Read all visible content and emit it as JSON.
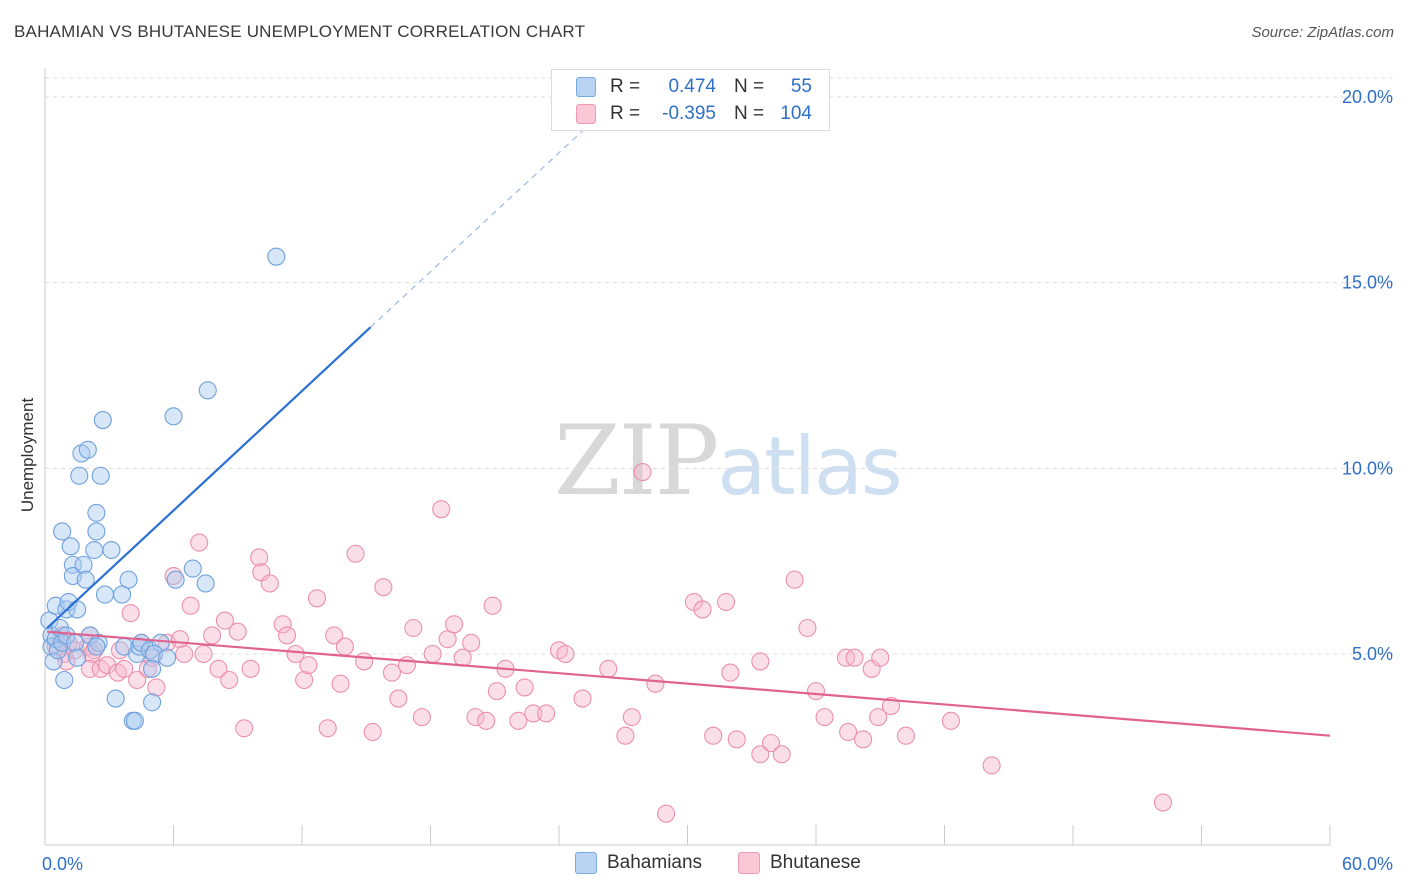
{
  "header": {
    "title": "BAHAMIAN VS BHUTANESE UNEMPLOYMENT CORRELATION CHART",
    "source": "Source: ZipAtlas.com"
  },
  "watermark": {
    "zip": "ZIP",
    "atlas": "atlas"
  },
  "legend": {
    "rows": [
      {
        "r_label": "R =",
        "r_value": "0.474",
        "n_label": "N =",
        "n_value": "55"
      },
      {
        "r_label": "R =",
        "r_value": "-0.395",
        "n_label": "N =",
        "n_value": "104"
      }
    ]
  },
  "bottom_legend": [
    "Bahamians",
    "Bhutanese"
  ],
  "colors": {
    "bahamian_fill": "#a9c9f0",
    "bahamian_stroke": "#6fa1de",
    "bahamian_line": "#2a6fd4",
    "bhutanese_fill": "#f6b8cb",
    "bhutanese_stroke": "#ec8fae",
    "bhutanese_line": "#e0628f",
    "axis_tick_label": "#2f6fc8",
    "grid": "#dddddd"
  },
  "chart_data": {
    "type": "scatter",
    "title": "BAHAMIAN VS BHUTANESE UNEMPLOYMENT CORRELATION CHART",
    "xlabel": "",
    "ylabel": "Unemployment",
    "xlim": [
      0,
      60
    ],
    "ylim": [
      0,
      20.5
    ],
    "x_tick_labels": [
      "0.0%",
      "60.0%"
    ],
    "y_ticks": [
      5,
      10,
      15,
      20
    ],
    "y_tick_labels": [
      "5.0%",
      "10.0%",
      "15.0%",
      "20.0%"
    ],
    "grid": "horizontal dashed",
    "legend_position": "top-center",
    "series": [
      {
        "name": "Bahamians",
        "r": 0.474,
        "n": 55,
        "trend": {
          "x": [
            0.1,
            15.2
          ],
          "y": [
            5.7,
            13.8
          ],
          "extended_x": [
            15.2,
            25.5
          ],
          "extended_y": [
            13.8,
            19.3
          ]
        },
        "points": [
          [
            0.2,
            5.9
          ],
          [
            0.3,
            5.5
          ],
          [
            0.3,
            5.2
          ],
          [
            0.4,
            4.8
          ],
          [
            0.5,
            6.3
          ],
          [
            0.5,
            5.4
          ],
          [
            0.6,
            5.1
          ],
          [
            0.7,
            5.7
          ],
          [
            0.8,
            5.3
          ],
          [
            0.9,
            4.3
          ],
          [
            0.8,
            8.3
          ],
          [
            1.0,
            6.2
          ],
          [
            1.1,
            6.4
          ],
          [
            1.0,
            5.5
          ],
          [
            1.2,
            7.9
          ],
          [
            1.3,
            7.4
          ],
          [
            1.3,
            7.1
          ],
          [
            1.4,
            5.3
          ],
          [
            1.5,
            6.2
          ],
          [
            1.5,
            4.9
          ],
          [
            1.6,
            9.8
          ],
          [
            1.7,
            10.4
          ],
          [
            1.8,
            7.4
          ],
          [
            1.9,
            7.0
          ],
          [
            2.0,
            10.5
          ],
          [
            2.1,
            5.5
          ],
          [
            2.3,
            7.8
          ],
          [
            2.4,
            8.8
          ],
          [
            2.4,
            8.3
          ],
          [
            2.5,
            5.3
          ],
          [
            2.4,
            5.2
          ],
          [
            2.6,
            9.8
          ],
          [
            2.7,
            11.3
          ],
          [
            2.8,
            6.6
          ],
          [
            3.1,
            7.8
          ],
          [
            3.3,
            3.8
          ],
          [
            3.6,
            6.6
          ],
          [
            3.7,
            5.2
          ],
          [
            3.9,
            7.0
          ],
          [
            4.1,
            3.2
          ],
          [
            4.2,
            3.2
          ],
          [
            4.3,
            5.0
          ],
          [
            4.4,
            5.2
          ],
          [
            4.5,
            5.3
          ],
          [
            4.9,
            5.1
          ],
          [
            5.0,
            3.7
          ],
          [
            5.4,
            5.3
          ],
          [
            5.1,
            5.0
          ],
          [
            5.7,
            4.9
          ],
          [
            6.0,
            11.4
          ],
          [
            5.0,
            4.6
          ],
          [
            6.1,
            7.0
          ],
          [
            6.9,
            7.3
          ],
          [
            7.5,
            6.9
          ],
          [
            7.6,
            12.1
          ],
          [
            10.8,
            15.7
          ]
        ]
      },
      {
        "name": "Bhutanese",
        "r": -0.395,
        "n": 104,
        "trend": {
          "x": [
            0.1,
            60
          ],
          "y": [
            5.6,
            2.8
          ]
        },
        "points": [
          [
            0.5,
            5.2
          ],
          [
            0.8,
            5.5
          ],
          [
            0.9,
            5.0
          ],
          [
            1.0,
            4.8
          ],
          [
            1.1,
            5.3
          ],
          [
            1.4,
            5.1
          ],
          [
            2.0,
            5.2
          ],
          [
            2.1,
            5.5
          ],
          [
            2.3,
            5.1
          ],
          [
            2.2,
            5.0
          ],
          [
            2.1,
            4.6
          ],
          [
            2.6,
            4.6
          ],
          [
            2.9,
            4.7
          ],
          [
            3.4,
            4.5
          ],
          [
            3.5,
            5.1
          ],
          [
            3.7,
            4.6
          ],
          [
            4.0,
            6.1
          ],
          [
            4.3,
            4.3
          ],
          [
            4.5,
            5.3
          ],
          [
            4.8,
            4.6
          ],
          [
            5.0,
            4.9
          ],
          [
            5.2,
            4.1
          ],
          [
            5.7,
            5.3
          ],
          [
            6.0,
            7.1
          ],
          [
            6.3,
            5.4
          ],
          [
            6.5,
            5.0
          ],
          [
            6.8,
            6.3
          ],
          [
            7.2,
            8.0
          ],
          [
            7.4,
            5.0
          ],
          [
            7.8,
            5.5
          ],
          [
            8.1,
            4.6
          ],
          [
            8.6,
            4.3
          ],
          [
            8.4,
            5.9
          ],
          [
            9.0,
            5.6
          ],
          [
            9.3,
            3.0
          ],
          [
            9.6,
            4.6
          ],
          [
            10.0,
            7.6
          ],
          [
            10.1,
            7.2
          ],
          [
            10.5,
            6.9
          ],
          [
            11.1,
            5.8
          ],
          [
            11.3,
            5.5
          ],
          [
            11.7,
            5.0
          ],
          [
            12.1,
            4.3
          ],
          [
            12.3,
            4.7
          ],
          [
            12.7,
            6.5
          ],
          [
            13.2,
            3.0
          ],
          [
            13.5,
            5.5
          ],
          [
            13.8,
            4.2
          ],
          [
            14.0,
            5.2
          ],
          [
            14.5,
            7.7
          ],
          [
            14.9,
            4.8
          ],
          [
            15.3,
            2.9
          ],
          [
            15.8,
            6.8
          ],
          [
            16.2,
            4.5
          ],
          [
            16.5,
            3.8
          ],
          [
            16.9,
            4.7
          ],
          [
            17.2,
            5.7
          ],
          [
            17.6,
            3.3
          ],
          [
            18.1,
            5.0
          ],
          [
            18.5,
            8.9
          ],
          [
            18.8,
            5.4
          ],
          [
            19.1,
            5.8
          ],
          [
            19.5,
            4.9
          ],
          [
            19.9,
            5.3
          ],
          [
            20.1,
            3.3
          ],
          [
            20.6,
            3.2
          ],
          [
            20.9,
            6.3
          ],
          [
            21.1,
            4.0
          ],
          [
            21.5,
            4.6
          ],
          [
            22.1,
            3.2
          ],
          [
            22.4,
            4.1
          ],
          [
            22.8,
            3.4
          ],
          [
            23.4,
            3.4
          ],
          [
            24.0,
            5.1
          ],
          [
            24.3,
            5.0
          ],
          [
            25.1,
            3.8
          ],
          [
            26.3,
            4.6
          ],
          [
            27.1,
            2.8
          ],
          [
            27.4,
            3.3
          ],
          [
            27.9,
            9.9
          ],
          [
            28.5,
            4.2
          ],
          [
            29.0,
            0.7
          ],
          [
            30.3,
            6.4
          ],
          [
            30.7,
            6.2
          ],
          [
            31.2,
            2.8
          ],
          [
            31.8,
            6.4
          ],
          [
            32.0,
            4.5
          ],
          [
            32.3,
            2.7
          ],
          [
            33.4,
            4.8
          ],
          [
            33.4,
            2.3
          ],
          [
            33.9,
            2.6
          ],
          [
            34.4,
            2.3
          ],
          [
            35.0,
            7.0
          ],
          [
            35.6,
            5.7
          ],
          [
            36.0,
            4.0
          ],
          [
            36.4,
            3.3
          ],
          [
            37.4,
            4.9
          ],
          [
            37.5,
            2.9
          ],
          [
            37.8,
            4.9
          ],
          [
            38.2,
            2.7
          ],
          [
            38.6,
            4.6
          ],
          [
            38.9,
            3.3
          ],
          [
            39.0,
            4.9
          ],
          [
            39.5,
            3.6
          ],
          [
            40.2,
            2.8
          ],
          [
            42.3,
            3.2
          ],
          [
            44.2,
            2.0
          ],
          [
            52.2,
            1.0
          ]
        ]
      }
    ]
  }
}
